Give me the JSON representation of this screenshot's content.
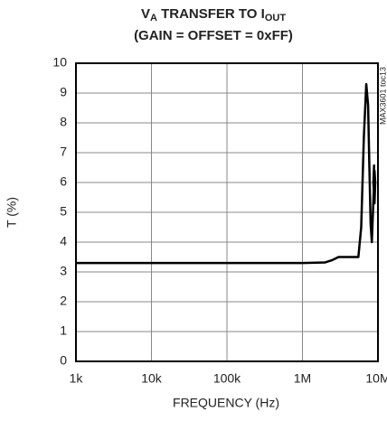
{
  "chart_data": {
    "type": "line",
    "title": [
      {
        "text": "V"
      },
      {
        "text": "A",
        "sub": true
      },
      {
        "text": " TRANSFER TO I"
      },
      {
        "text": "OUT",
        "sub": true
      }
    ],
    "subtitle": "(GAIN = OFFSET = 0xFF)",
    "xlabel": "FREQUENCY (Hz)",
    "ylabel": "T (%)",
    "annotation": "MAX3601 toc13",
    "xscale": "log",
    "grid": true,
    "xlim": [
      1000,
      10000000
    ],
    "xticks": [
      {
        "value": 1000,
        "label": "1k"
      },
      {
        "value": 10000,
        "label": "10k"
      },
      {
        "value": 100000,
        "label": "100k"
      },
      {
        "value": 1000000,
        "label": "1M"
      },
      {
        "value": 10000000,
        "label": "10M"
      }
    ],
    "ylim": [
      0,
      10
    ],
    "yticks": [
      0,
      1,
      2,
      3,
      4,
      5,
      6,
      7,
      8,
      9,
      10
    ],
    "series": [
      {
        "color": "#000000",
        "x": [
          1000,
          10000,
          100000,
          1000000,
          2000000,
          2500000,
          3000000,
          4000000,
          5500000,
          6000000,
          6500000,
          7000000,
          7400000,
          7700000,
          8000000,
          8300000,
          8700000,
          9000000,
          9200000,
          9000000,
          8700000,
          8900000
        ],
        "values": [
          3.3,
          3.3,
          3.3,
          3.3,
          3.32,
          3.4,
          3.5,
          3.5,
          3.5,
          4.5,
          7.5,
          9.3,
          8.6,
          6.5,
          4.6,
          4.0,
          5.4,
          6.4,
          6.0,
          5.3,
          6.0,
          6.6
        ]
      }
    ]
  }
}
